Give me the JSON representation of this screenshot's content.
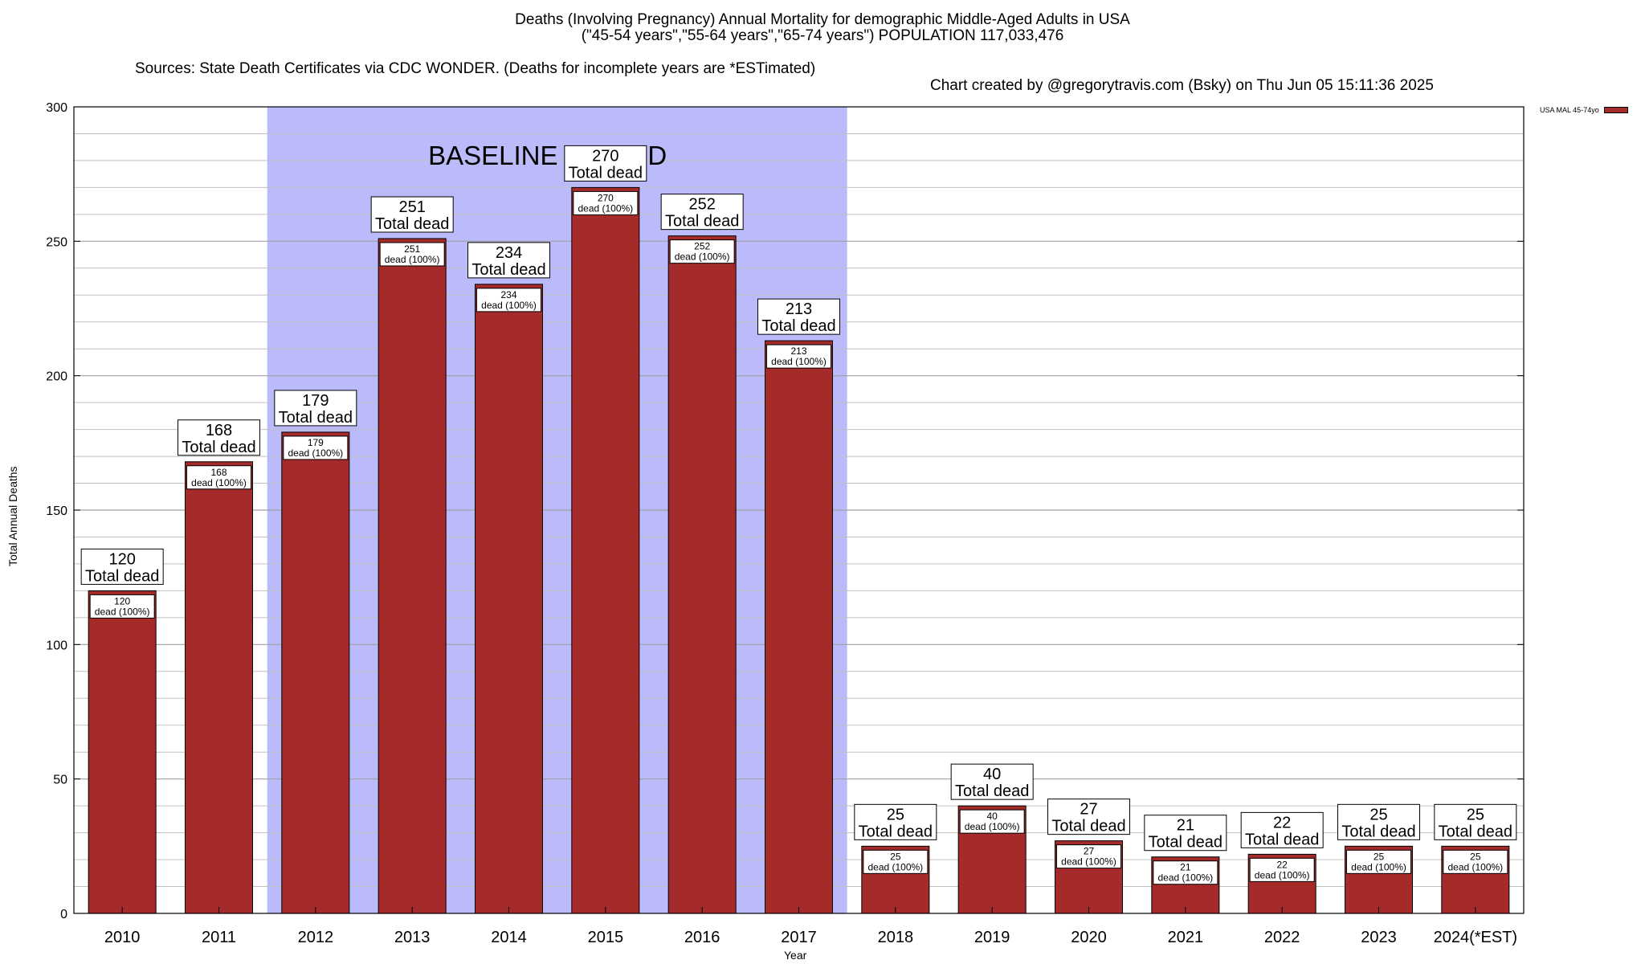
{
  "title": {
    "line1": "Deaths (Involving Pregnancy) Annual Mortality for demographic Middle-Aged Adults in USA",
    "line2": "(\"45-54 years\",\"55-64 years\",\"65-74 years\") POPULATION 117,033,476",
    "sources": "Sources: State Death Certificates via CDC WONDER. (Deaths for incomplete years are *ESTimated)",
    "credit": "Chart created by @gregorytravis.com (Bsky) on Thu Jun 05 15:11:36 2025"
  },
  "legend": {
    "label": "USA MAL 45-74yo",
    "color": "#a52a2a"
  },
  "colors": {
    "bar": "#a52a2a",
    "baseline": "#bbbbfb",
    "grid": "#c0c0c0"
  },
  "chart_data": {
    "type": "bar",
    "categories": [
      "2010",
      "2011",
      "2012",
      "2013",
      "2014",
      "2015",
      "2016",
      "2017",
      "2018",
      "2019",
      "2020",
      "2021",
      "2022",
      "2023",
      "2024(*EST)"
    ],
    "series": [
      {
        "name": "USA MAL 45-74yo",
        "values": [
          120,
          168,
          179,
          251,
          234,
          270,
          252,
          213,
          25,
          40,
          27,
          21,
          22,
          25,
          25
        ]
      }
    ],
    "xlabel": "Year",
    "ylabel": "Total Annual Deaths",
    "ylim": [
      0,
      300
    ],
    "yticks": [
      0,
      50,
      100,
      150,
      200,
      250,
      300
    ],
    "grid": true,
    "legend_position": "top-right",
    "baseline_period": {
      "label": "BASELINE PERIOD",
      "from": "2012",
      "to": "2017"
    },
    "top_label_suffix": "Total dead",
    "inner_label_suffix": "dead (100%)"
  }
}
